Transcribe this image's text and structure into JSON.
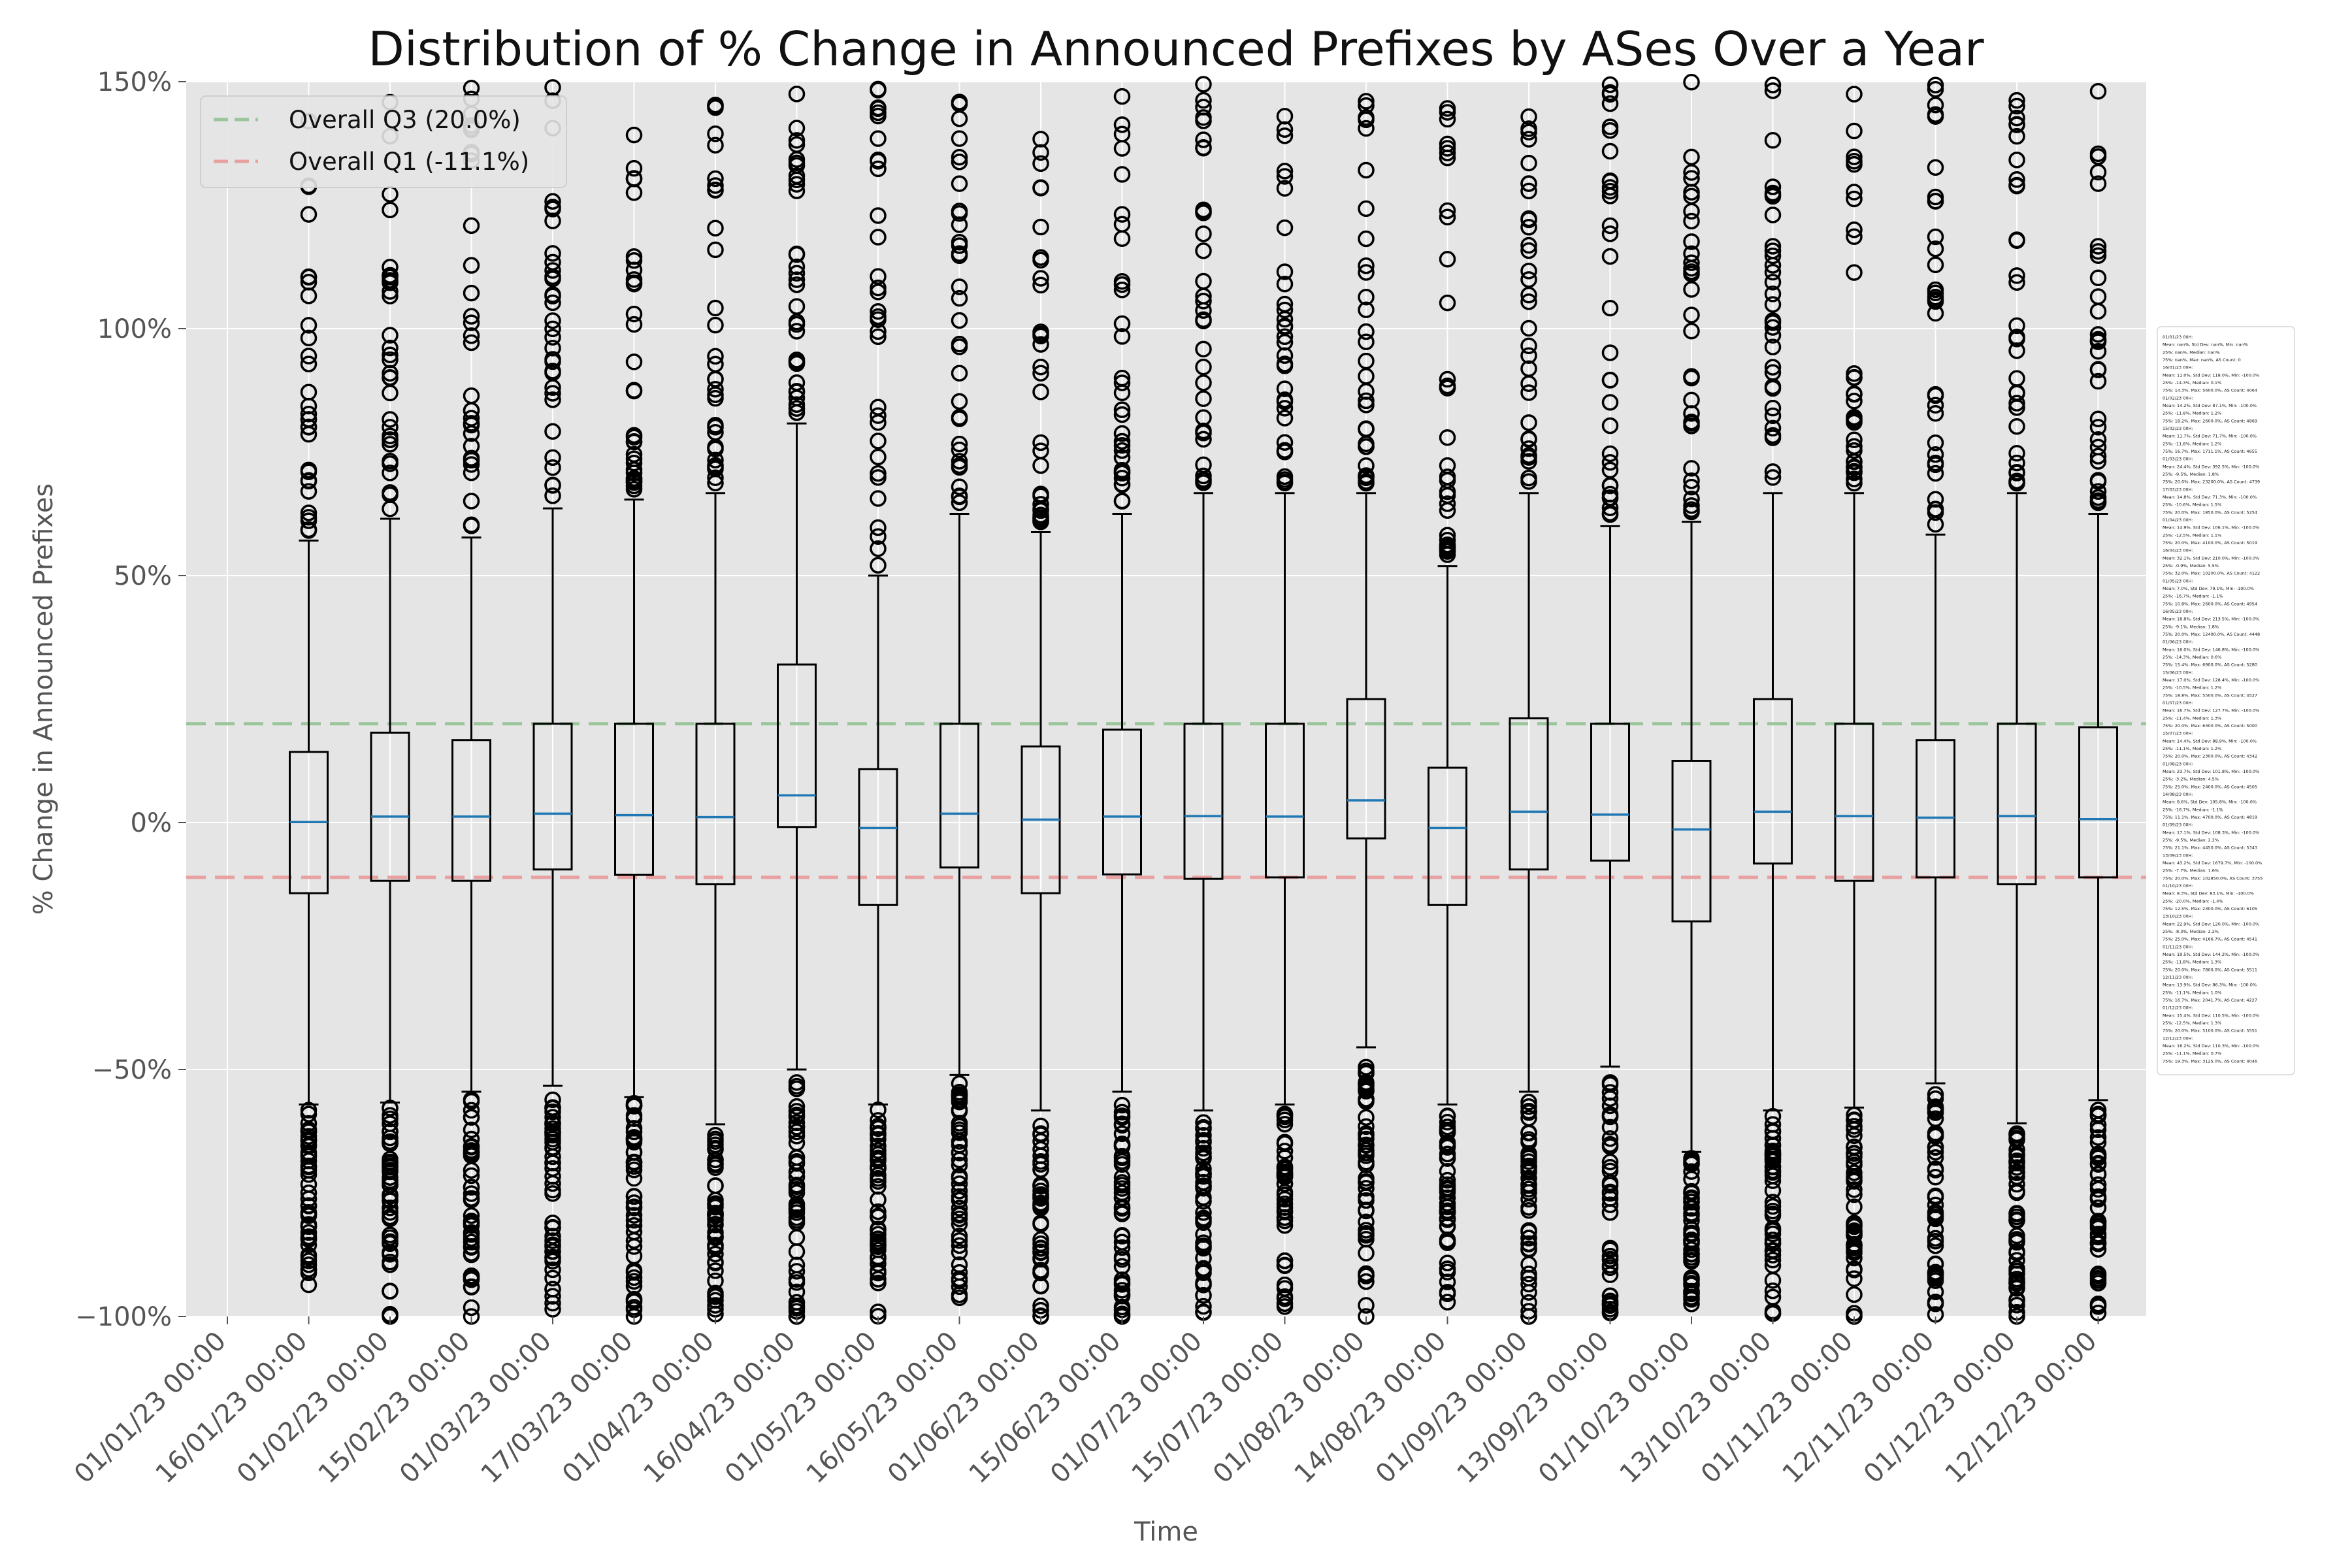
{
  "chart_data": {
    "type": "box",
    "title": "Distribution of % Change in Announced Prefixes by ASes Over a Year",
    "xlabel": "Time",
    "ylabel": "% Change in Announced Prefixes",
    "ylim": [
      -100,
      150
    ],
    "yticks": [
      -100,
      -50,
      0,
      50,
      100,
      150
    ],
    "ytick_labels": [
      "−100%",
      "−50%",
      "0%",
      "50%",
      "100%",
      "150%"
    ],
    "grid": true,
    "legend_position": "top-left",
    "reference_lines": [
      {
        "name": "Overall Q3 (20.0%)",
        "value": 20.0,
        "color": "#9bc59b"
      },
      {
        "name": "Overall Q1 (-11.1%)",
        "value": -11.1,
        "color": "#e8a0a0"
      }
    ],
    "categories": [
      "01/01/23 00:00",
      "16/01/23 00:00",
      "01/02/23 00:00",
      "15/02/23 00:00",
      "01/03/23 00:00",
      "17/03/23 00:00",
      "01/04/23 00:00",
      "16/04/23 00:00",
      "01/05/23 00:00",
      "16/05/23 00:00",
      "01/06/23 00:00",
      "15/06/23 00:00",
      "01/07/23 00:00",
      "15/07/23 00:00",
      "01/08/23 00:00",
      "14/08/23 00:00",
      "01/09/23 00:00",
      "13/09/23 00:00",
      "01/10/23 00:00",
      "13/10/23 00:00",
      "01/11/23 00:00",
      "12/11/23 00:00",
      "01/12/23 00:00",
      "12/12/23 00:00"
    ],
    "boxes": [
      {
        "label": "01/01/23 00:00",
        "empty": true
      },
      {
        "label": "16/01/23 00:00",
        "q1": -14.3,
        "median": 0.1,
        "q3": 14.3,
        "whisker_low": -57.1,
        "whisker_high": 57.1
      },
      {
        "label": "01/02/23 00:00",
        "q1": -11.8,
        "median": 1.2,
        "q3": 18.2,
        "whisker_low": -56.7,
        "whisker_high": 61.5
      },
      {
        "label": "15/02/23 00:00",
        "q1": -11.8,
        "median": 1.2,
        "q3": 16.7,
        "whisker_low": -54.5,
        "whisker_high": 57.7
      },
      {
        "label": "01/03/23 00:00",
        "q1": -9.5,
        "median": 1.8,
        "q3": 20.0,
        "whisker_low": -53.3,
        "whisker_high": 63.6
      },
      {
        "label": "17/03/23 00:00",
        "q1": -10.6,
        "median": 1.5,
        "q3": 20.0,
        "whisker_low": -55.6,
        "whisker_high": 65.4
      },
      {
        "label": "01/04/23 00:00",
        "q1": -12.5,
        "median": 1.1,
        "q3": 20.0,
        "whisker_low": -61.1,
        "whisker_high": 66.7
      },
      {
        "label": "16/04/23 00:00",
        "q1": -0.9,
        "median": 5.5,
        "q3": 32.0,
        "whisker_low": -50.0,
        "whisker_high": 80.8
      },
      {
        "label": "01/05/23 00:00",
        "q1": -16.7,
        "median": -1.1,
        "q3": 10.8,
        "whisker_low": -57.1,
        "whisker_high": 50.0
      },
      {
        "label": "16/05/23 00:00",
        "q1": -9.1,
        "median": 1.8,
        "q3": 20.0,
        "whisker_low": -51.1,
        "whisker_high": 62.5
      },
      {
        "label": "01/06/23 00:00",
        "q1": -14.3,
        "median": 0.6,
        "q3": 15.4,
        "whisker_low": -58.3,
        "whisker_high": 58.8
      },
      {
        "label": "15/06/23 00:00",
        "q1": -10.5,
        "median": 1.2,
        "q3": 18.8,
        "whisker_low": -54.5,
        "whisker_high": 62.5
      },
      {
        "label": "01/07/23 00:00",
        "q1": -11.4,
        "median": 1.3,
        "q3": 20.0,
        "whisker_low": -58.3,
        "whisker_high": 66.7
      },
      {
        "label": "15/07/23 00:00",
        "q1": -11.1,
        "median": 1.2,
        "q3": 20.0,
        "whisker_low": -57.1,
        "whisker_high": 66.7
      },
      {
        "label": "01/08/23 00:00",
        "q1": -3.2,
        "median": 4.5,
        "q3": 25.0,
        "whisker_low": -45.5,
        "whisker_high": 66.7
      },
      {
        "label": "14/08/23 00:00",
        "q1": -16.7,
        "median": -1.1,
        "q3": 11.1,
        "whisker_low": -57.1,
        "whisker_high": 51.9
      },
      {
        "label": "01/09/23 00:00",
        "q1": -9.5,
        "median": 2.2,
        "q3": 21.1,
        "whisker_low": -54.5,
        "whisker_high": 66.7
      },
      {
        "label": "13/09/23 00:00",
        "q1": -7.7,
        "median": 1.6,
        "q3": 20.0,
        "whisker_low": -49.4,
        "whisker_high": 60.0
      },
      {
        "label": "01/10/23 00:00",
        "q1": -20.0,
        "median": -1.4,
        "q3": 12.5,
        "whisker_low": -66.7,
        "whisker_high": 60.9
      },
      {
        "label": "13/10/23 00:00",
        "q1": -8.3,
        "median": 2.2,
        "q3": 25.0,
        "whisker_low": -58.3,
        "whisker_high": 66.7
      },
      {
        "label": "01/11/23 00:00",
        "q1": -11.8,
        "median": 1.3,
        "q3": 20.0,
        "whisker_low": -57.7,
        "whisker_high": 66.7
      },
      {
        "label": "12/11/23 00:00",
        "q1": -11.1,
        "median": 1.0,
        "q3": 16.7,
        "whisker_low": -52.8,
        "whisker_high": 58.3
      },
      {
        "label": "01/12/23 00:00",
        "q1": -12.5,
        "median": 1.3,
        "q3": 20.0,
        "whisker_low": -60.9,
        "whisker_high": 66.7
      },
      {
        "label": "12/12/23 00:00",
        "q1": -11.1,
        "median": 0.7,
        "q3": 19.3,
        "whisker_low": -56.2,
        "whisker_high": 62.5
      }
    ],
    "stats_panel": [
      "01/01/23 00H:",
      "  Mean: nan%, Std Dev: nan%, Min: nan%",
      "  25%: nan%, Median: nan%",
      "  75%: nan%, Max: nan%, AS Count: 0",
      "16/01/23 00H:",
      "  Mean: 11.0%, Std Dev: 118.0%, Min: -100.0%",
      "  25%: -14.3%, Median: 0.1%",
      "  75%: 14.3%, Max: 5600.0%, AS Count: 4064",
      "01/02/23 00H:",
      "  Mean: 14.2%, Std Dev: 87.1%, Min: -100.0%",
      "  25%: -11.8%, Median: 1.2%",
      "  75%: 18.2%, Max: 2600.0%, AS Count: 4869",
      "15/02/23 00H:",
      "  Mean: 11.7%, Std Dev: 71.7%, Min: -100.0%",
      "  25%: -11.8%, Median: 1.2%",
      "  75%: 16.7%, Max: 1711.1%, AS Count: 4655",
      "01/03/23 00H:",
      "  Mean: 24.4%, Std Dev: 392.5%, Min: -100.0%",
      "  25%: -9.5%, Median: 1.8%",
      "  75%: 20.0%, Max: 23200.0%, AS Count: 4739",
      "17/03/23 00H:",
      "  Mean: 14.8%, Std Dev: 71.3%, Min: -100.0%",
      "  25%: -10.6%, Median: 1.5%",
      "  75%: 20.0%, Max: 1850.0%, AS Count: 5254",
      "01/04/23 00H:",
      "  Mean: 14.9%, Std Dev: 106.1%, Min: -100.0%",
      "  25%: -12.5%, Median: 1.1%",
      "  75%: 20.0%, Max: 4100.0%, AS Count: 5019",
      "16/04/23 00H:",
      "  Mean: 32.1%, Std Dev: 210.0%, Min: -100.0%",
      "  25%: -0.9%, Median: 5.5%",
      "  75%: 32.0%, Max: 10200.0%, AS Count: 4122",
      "01/05/23 00H:",
      "  Mean: 7.0%, Std Dev: 79.1%, Min: -100.0%",
      "  25%: -16.7%, Median: -1.1%",
      "  75%: 10.8%, Max: 2600.0%, AS Count: 4954",
      "16/05/23 00H:",
      "  Mean: 18.8%, Std Dev: 213.5%, Min: -100.0%",
      "  25%: -9.1%, Median: 1.8%",
      "  75%: 20.0%, Max: 12400.0%, AS Count: 4448",
      "01/06/23 00H:",
      "  Mean: 16.0%, Std Dev: 146.8%, Min: -100.0%",
      "  25%: -14.3%, Median: 0.6%",
      "  75%: 15.4%, Max: 6900.0%, AS Count: 5280",
      "15/06/23 00H:",
      "  Mean: 17.0%, Std Dev: 128.4%, Min: -100.0%",
      "  25%: -10.5%, Median: 1.2%",
      "  75%: 18.8%, Max: 5500.0%, AS Count: 4527",
      "01/07/23 00H:",
      "  Mean: 16.7%, Std Dev: 127.7%, Min: -100.0%",
      "  25%: -11.4%, Median: 1.3%",
      "  75%: 20.0%, Max: 6300.0%, AS Count: 5000",
      "15/07/23 00H:",
      "  Mean: 14.4%, Std Dev: 88.9%, Min: -100.0%",
      "  25%: -11.1%, Median: 1.2%",
      "  75%: 20.0%, Max: 2300.0%, AS Count: 4342",
      "01/08/23 00H:",
      "  Mean: 23.7%, Std Dev: 101.8%, Min: -100.0%",
      "  25%: -3.2%, Median: 4.5%",
      "  75%: 25.0%, Max: 2400.0%, AS Count: 4505",
      "14/08/23 00H:",
      "  Mean: 8.6%, Std Dev: 105.8%, Min: -100.0%",
      "  25%: -16.7%, Median: -1.1%",
      "  75%: 11.1%, Max: 4700.0%, AS Count: 4819",
      "01/09/23 00H:",
      "  Mean: 17.1%, Std Dev: 108.3%, Min: -100.0%",
      "  25%: -9.5%, Median: 2.2%",
      "  75%: 21.1%, Max: 4450.0%, AS Count: 5343",
      "13/09/23 00H:",
      "  Mean: 43.2%, Std Dev: 1679.7%, Min: -100.0%",
      "  25%: -7.7%, Median: 1.6%",
      "  75%: 20.0%, Max: 102850.0%, AS Count: 3755",
      "01/10/23 00H:",
      "  Mean: 8.3%, Std Dev: 83.1%, Min: -100.0%",
      "  25%: -20.0%, Median: -1.4%",
      "  75%: 12.5%, Max: 2300.0%, AS Count: 6105",
      "13/10/23 00H:",
      "  Mean: 22.9%, Std Dev: 120.0%, Min: -100.0%",
      "  25%: -8.3%, Median: 2.2%",
      "  75%: 25.0%, Max: 4166.7%, AS Count: 4541",
      "01/11/23 00H:",
      "  Mean: 19.5%, Std Dev: 144.2%, Min: -100.0%",
      "  25%: -11.8%, Median: 1.3%",
      "  75%: 20.0%, Max: 7800.0%, AS Count: 5511",
      "12/11/23 00H:",
      "  Mean: 13.9%, Std Dev: 86.3%, Min: -100.0%",
      "  25%: -11.1%, Median: 1.0%",
      "  75%: 16.7%, Max: 2041.7%, AS Count: 4227",
      "01/12/23 00H:",
      "  Mean: 15.4%, Std Dev: 110.5%, Min: -100.0%",
      "  25%: -12.5%, Median: 1.3%",
      "  75%: 20.0%, Max: 5100.0%, AS Count: 5551",
      "12/12/23 00H:",
      "  Mean: 16.2%, Std Dev: 110.3%, Min: -100.0%",
      "  25%: -11.1%, Median: 0.7%",
      "  75%: 19.3%, Max: 3125.0%, AS Count: 4046"
    ],
    "colors": {
      "background": "#e5e5e5",
      "grid": "#ffffff",
      "box": "#000000",
      "median": "#1f77b4",
      "q3_line": "#9bc59b",
      "q1_line": "#e8a0a0"
    }
  }
}
